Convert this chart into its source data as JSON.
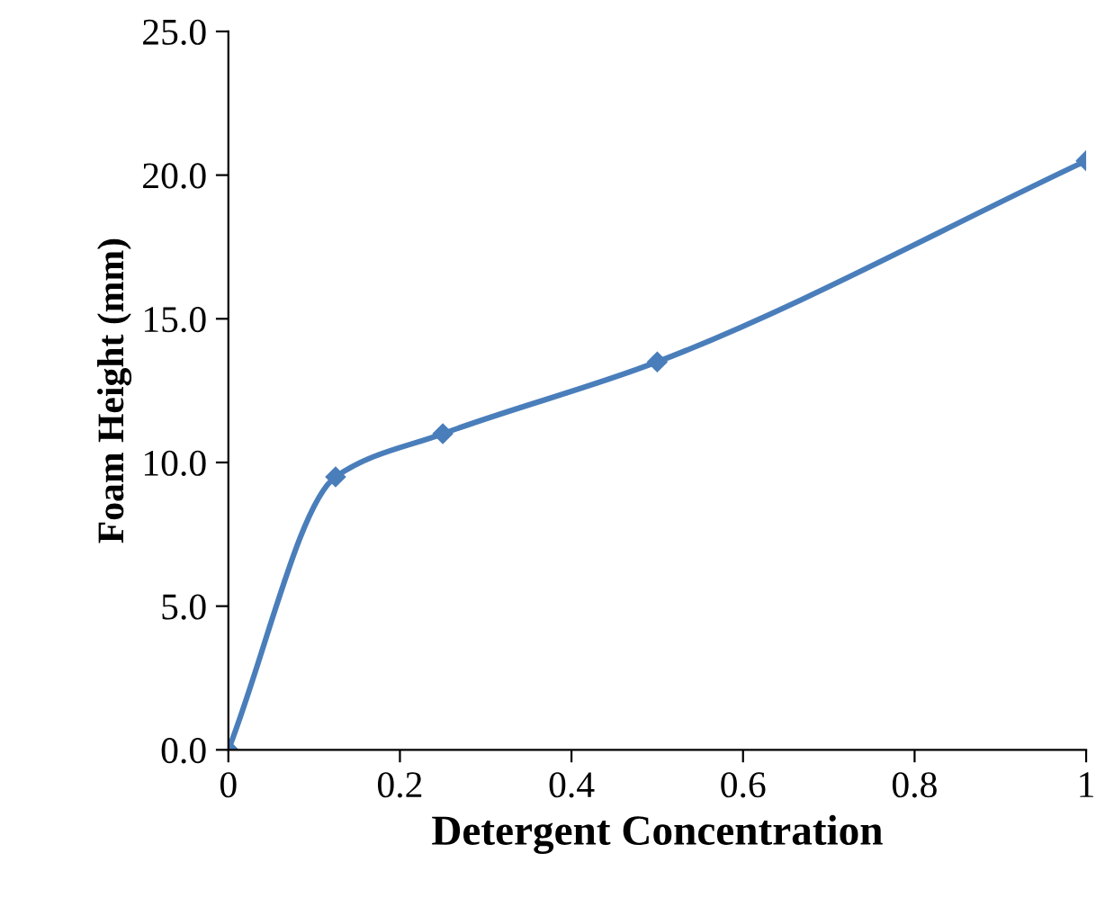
{
  "chart_data": {
    "type": "line",
    "xlabel": "Detergent Concentration",
    "ylabel": "Foam Height (mm)",
    "x": [
      0,
      0.125,
      0.25,
      0.5,
      1
    ],
    "series": [
      {
        "color": "#4a7ebb",
        "values": [
          0,
          9.5,
          11,
          13.5,
          20.5
        ]
      }
    ],
    "marker": "diamond",
    "line_style": "solid",
    "grid": false,
    "legend": false,
    "xlim": [
      0,
      1
    ],
    "xticks": [
      0,
      {
        "value": 0.2,
        "label": "0.2"
      },
      {
        "value": 0.4,
        "label": "0.4"
      },
      {
        "value": 0.6,
        "label": "0.6"
      },
      {
        "value": 0.8,
        "label": "0.8"
      },
      1
    ],
    "ylim": [
      0,
      25
    ],
    "yticks": [
      {
        "value": 0,
        "label": "0.0"
      },
      {
        "value": 5,
        "label": "5.0"
      },
      {
        "value": 10,
        "label": "10.0"
      },
      {
        "value": 15,
        "label": "15.0"
      },
      {
        "value": 20,
        "label": "20.0"
      },
      {
        "value": 25,
        "label": "25.0"
      }
    ]
  }
}
